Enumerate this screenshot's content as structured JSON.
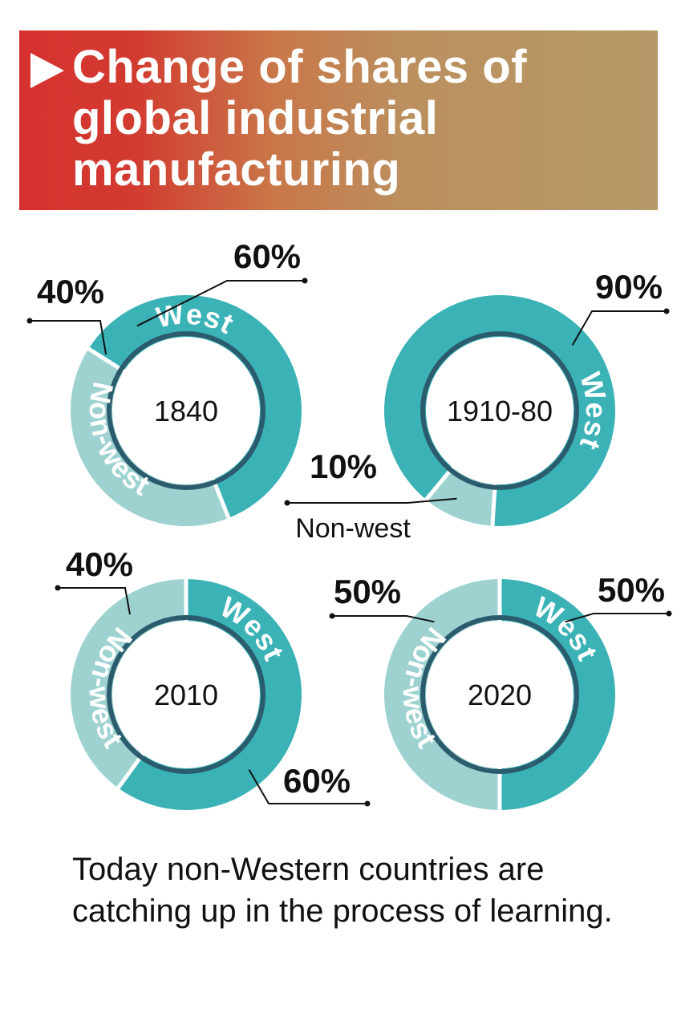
{
  "header": {
    "title": "Change of shares of global industrial manufacturing"
  },
  "colors": {
    "west": "#3ab2b6",
    "non_west": "#9dd2d1",
    "inner_ring": "#2b5c6e",
    "header_left": "#d6312f",
    "header_right": "#b69968"
  },
  "chart_data": [
    {
      "type": "pie",
      "center_label": "1840",
      "categories": [
        "West",
        "Non-west"
      ],
      "values": [
        60,
        40
      ],
      "data_labels": [
        "60%",
        "40%"
      ]
    },
    {
      "type": "pie",
      "center_label": "1910-80",
      "categories": [
        "West",
        "Non-west"
      ],
      "values": [
        90,
        10
      ],
      "data_labels": [
        "90%",
        "10%"
      ]
    },
    {
      "type": "pie",
      "center_label": "2010",
      "categories": [
        "West",
        "Non-west"
      ],
      "values": [
        60,
        40
      ],
      "data_labels": [
        "60%",
        "40%"
      ]
    },
    {
      "type": "pie",
      "center_label": "2020",
      "categories": [
        "West",
        "Non-west"
      ],
      "values": [
        50,
        50
      ],
      "data_labels": [
        "50%",
        "50%"
      ]
    }
  ],
  "footnote": "Today non-Western countries are catching up in the process of learning."
}
